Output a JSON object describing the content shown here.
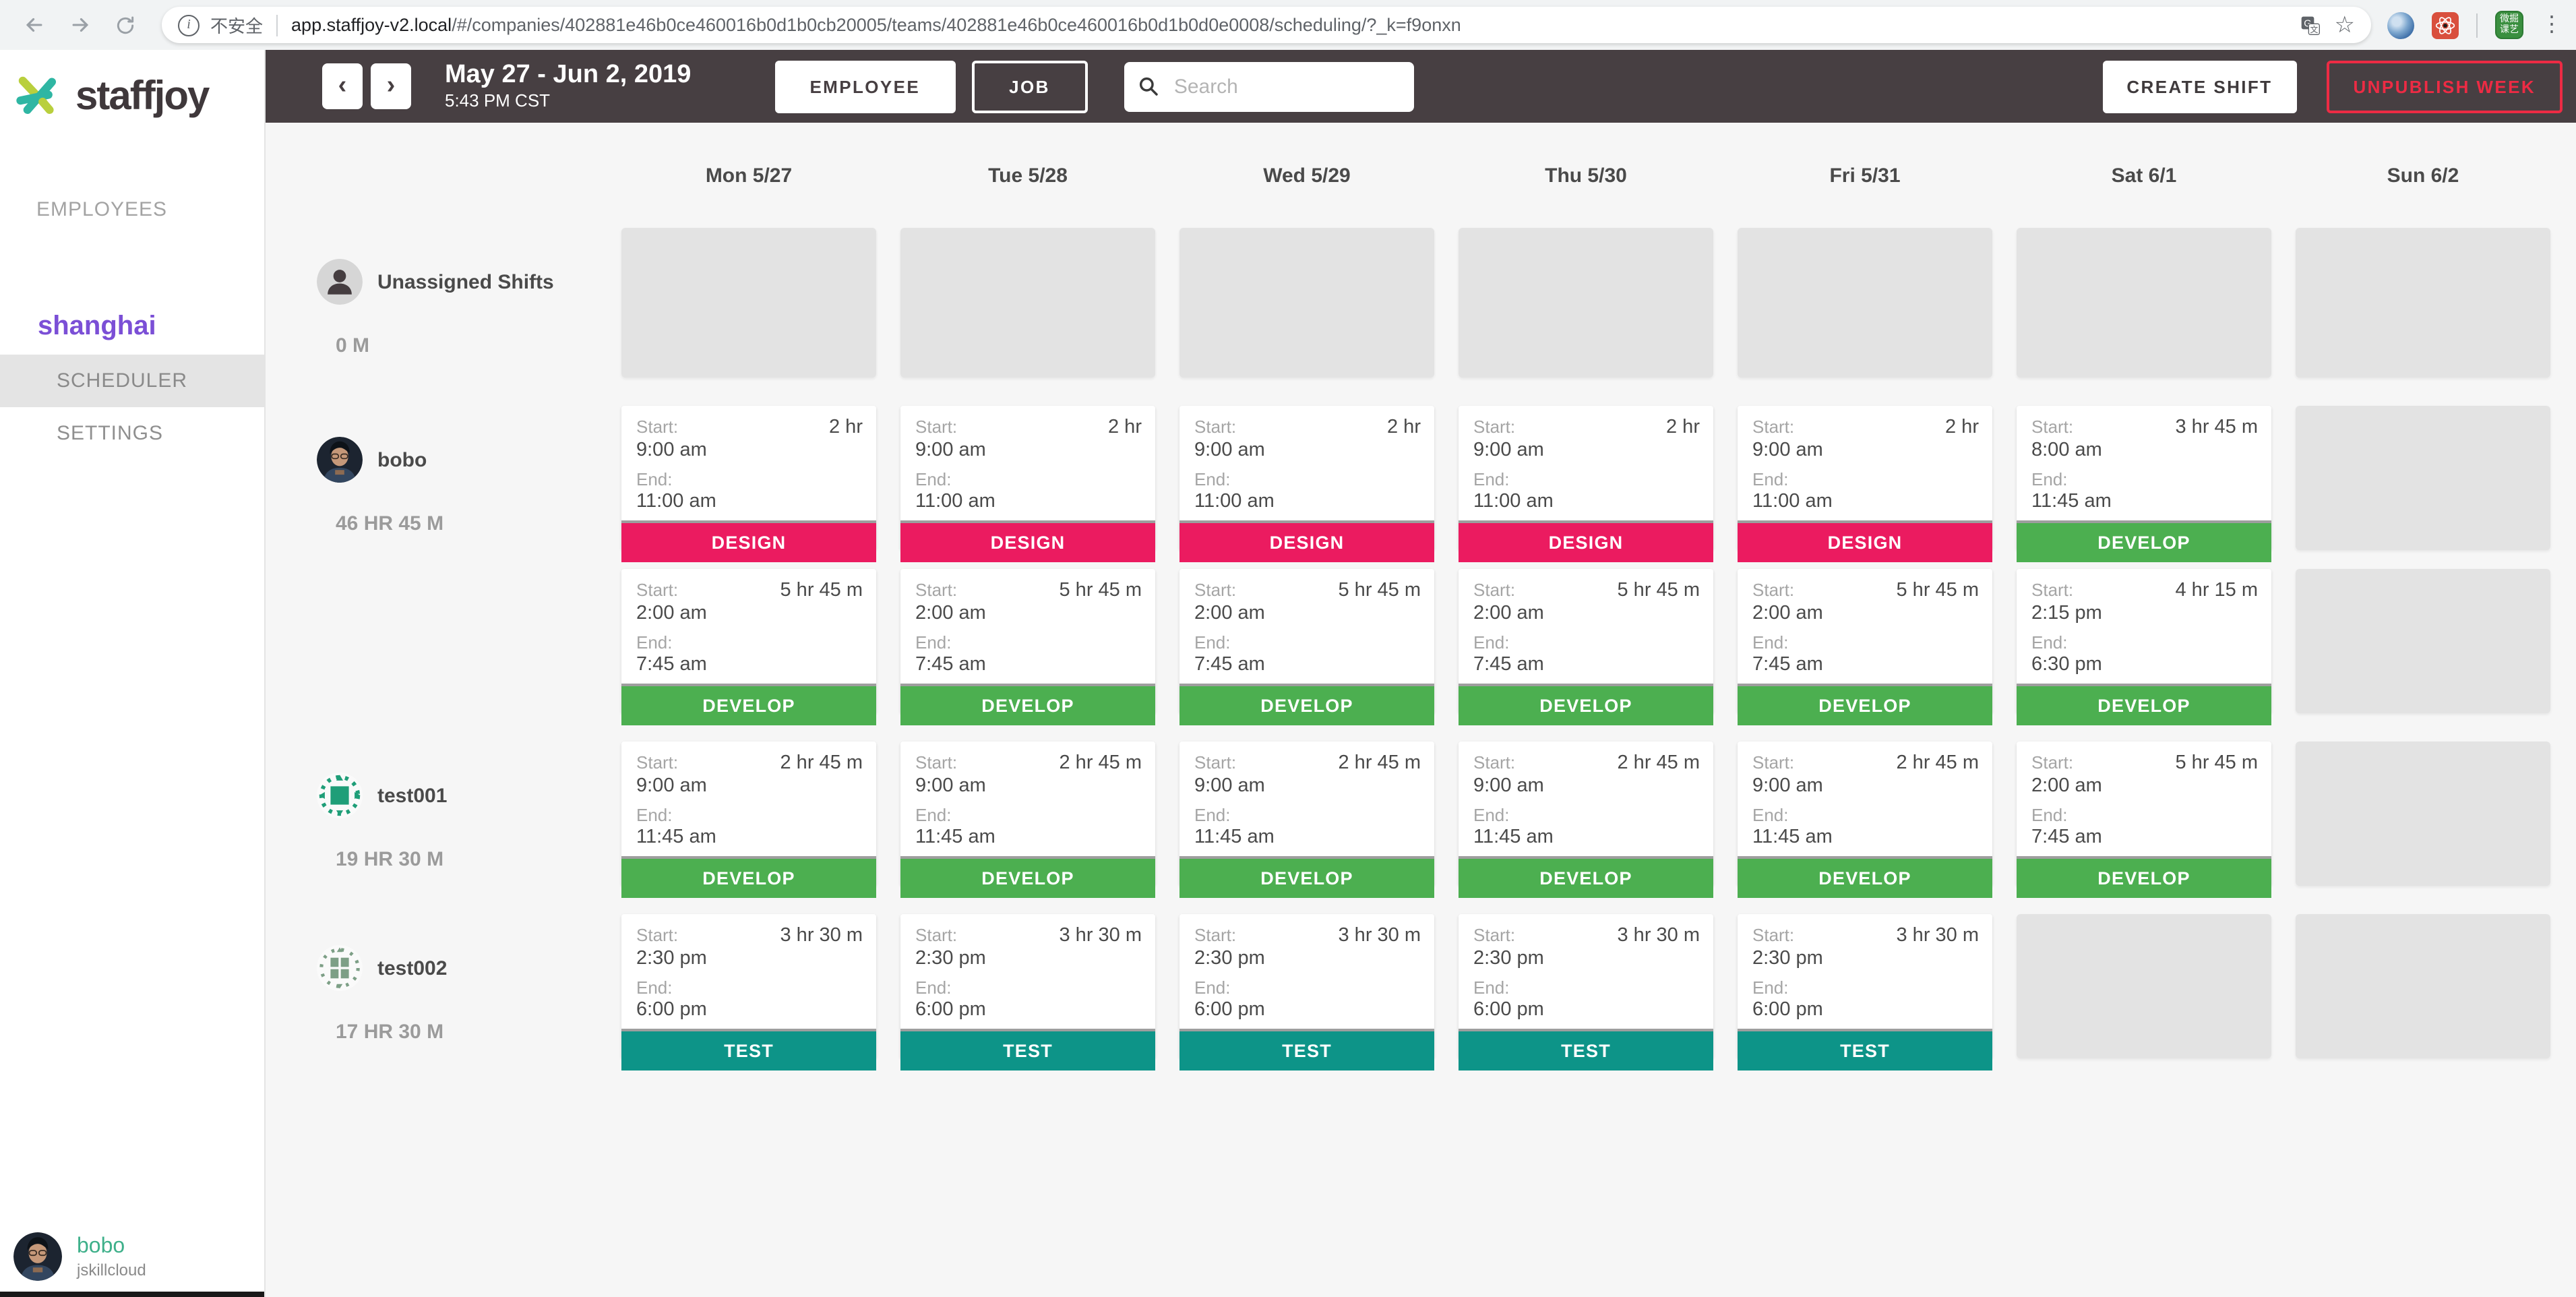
{
  "browser": {
    "security_text": "不安全",
    "url_domain": "app.staffjoy-v2.local",
    "url_path": "/#/companies/402881e46b0ce460016b0d1b0cb20005/teams/402881e46b0ce460016b0d1b0d0e0008/scheduling/?_k=f9onxn",
    "ext_green_line1": "微掘",
    "ext_green_line2": "课艺"
  },
  "icons": {
    "prev": "‹",
    "next": "›",
    "star": "☆",
    "menu": "⋮",
    "translate": "G",
    "translate_sub": "文"
  },
  "header": {
    "date_range": "May 27 - Jun 2, 2019",
    "time": "5:43 PM CST",
    "employee_toggle": "EMPLOYEE",
    "job_toggle": "JOB",
    "search_placeholder": "Search",
    "create_shift": "CREATE SHIFT",
    "unpublish_week": "UNPUBLISH WEEK"
  },
  "sidebar": {
    "brand": "staffjoy",
    "nav_employees": "EMPLOYEES",
    "team_name": "shanghai",
    "nav_scheduler": "SCHEDULER",
    "nav_settings": "SETTINGS",
    "user": {
      "name": "bobo",
      "company": "jskillcloud"
    }
  },
  "colors": {
    "design": "#eb1b60",
    "develop": "#4caf50",
    "test": "#0d9488",
    "topbar": "#473f42",
    "accent_purple": "#7b4fd6",
    "accent_teal": "#3eb08a",
    "unpublish_red": "#ed2b44"
  },
  "calendar": {
    "days": [
      "Mon 5/27",
      "Tue 5/28",
      "Wed 5/29",
      "Thu 5/30",
      "Fri 5/31",
      "Sat 6/1",
      "Sun 6/2"
    ],
    "card_labels": {
      "start": "Start:",
      "end": "End:"
    },
    "rows": [
      {
        "name": "Unassigned Shifts",
        "total": "0 M",
        "avatar": "unassigned",
        "tall_empty": true,
        "shift_rows": [
          [
            "empty",
            "empty",
            "empty",
            "empty",
            "empty",
            "empty",
            "empty"
          ]
        ]
      },
      {
        "name": "bobo",
        "total": "46 HR 45 M",
        "avatar": "photo",
        "shift_rows": [
          [
            {
              "start": "9:00 am",
              "end": "11:00 am",
              "duration": "2 hr",
              "job": "DESIGN",
              "type": "design"
            },
            {
              "start": "9:00 am",
              "end": "11:00 am",
              "duration": "2 hr",
              "job": "DESIGN",
              "type": "design"
            },
            {
              "start": "9:00 am",
              "end": "11:00 am",
              "duration": "2 hr",
              "job": "DESIGN",
              "type": "design"
            },
            {
              "start": "9:00 am",
              "end": "11:00 am",
              "duration": "2 hr",
              "job": "DESIGN",
              "type": "design"
            },
            {
              "start": "9:00 am",
              "end": "11:00 am",
              "duration": "2 hr",
              "job": "DESIGN",
              "type": "design"
            },
            {
              "start": "8:00 am",
              "end": "11:45 am",
              "duration": "3 hr 45 m",
              "job": "DEVELOP",
              "type": "develop"
            },
            "empty"
          ],
          [
            {
              "start": "2:00 am",
              "end": "7:45 am",
              "duration": "5 hr 45 m",
              "job": "DEVELOP",
              "type": "develop"
            },
            {
              "start": "2:00 am",
              "end": "7:45 am",
              "duration": "5 hr 45 m",
              "job": "DEVELOP",
              "type": "develop"
            },
            {
              "start": "2:00 am",
              "end": "7:45 am",
              "duration": "5 hr 45 m",
              "job": "DEVELOP",
              "type": "develop"
            },
            {
              "start": "2:00 am",
              "end": "7:45 am",
              "duration": "5 hr 45 m",
              "job": "DEVELOP",
              "type": "develop"
            },
            {
              "start": "2:00 am",
              "end": "7:45 am",
              "duration": "5 hr 45 m",
              "job": "DEVELOP",
              "type": "develop"
            },
            {
              "start": "2:15 pm",
              "end": "6:30 pm",
              "duration": "4 hr 15 m",
              "job": "DEVELOP",
              "type": "develop"
            },
            "empty"
          ]
        ]
      },
      {
        "name": "test001",
        "total": "19 HR 30 M",
        "avatar": "identicon1",
        "shift_rows": [
          [
            {
              "start": "9:00 am",
              "end": "11:45 am",
              "duration": "2 hr 45 m",
              "job": "DEVELOP",
              "type": "develop"
            },
            {
              "start": "9:00 am",
              "end": "11:45 am",
              "duration": "2 hr 45 m",
              "job": "DEVELOP",
              "type": "develop"
            },
            {
              "start": "9:00 am",
              "end": "11:45 am",
              "duration": "2 hr 45 m",
              "job": "DEVELOP",
              "type": "develop"
            },
            {
              "start": "9:00 am",
              "end": "11:45 am",
              "duration": "2 hr 45 m",
              "job": "DEVELOP",
              "type": "develop"
            },
            {
              "start": "9:00 am",
              "end": "11:45 am",
              "duration": "2 hr 45 m",
              "job": "DEVELOP",
              "type": "develop"
            },
            {
              "start": "2:00 am",
              "end": "7:45 am",
              "duration": "5 hr 45 m",
              "job": "DEVELOP",
              "type": "develop"
            },
            "empty"
          ]
        ]
      },
      {
        "name": "test002",
        "total": "17 HR 30 M",
        "avatar": "identicon2",
        "shift_rows": [
          [
            {
              "start": "2:30 pm",
              "end": "6:00 pm",
              "duration": "3 hr 30 m",
              "job": "TEST",
              "type": "test"
            },
            {
              "start": "2:30 pm",
              "end": "6:00 pm",
              "duration": "3 hr 30 m",
              "job": "TEST",
              "type": "test"
            },
            {
              "start": "2:30 pm",
              "end": "6:00 pm",
              "duration": "3 hr 30 m",
              "job": "TEST",
              "type": "test"
            },
            {
              "start": "2:30 pm",
              "end": "6:00 pm",
              "duration": "3 hr 30 m",
              "job": "TEST",
              "type": "test"
            },
            {
              "start": "2:30 pm",
              "end": "6:00 pm",
              "duration": "3 hr 30 m",
              "job": "TEST",
              "type": "test"
            },
            "empty",
            "empty"
          ]
        ]
      }
    ]
  }
}
